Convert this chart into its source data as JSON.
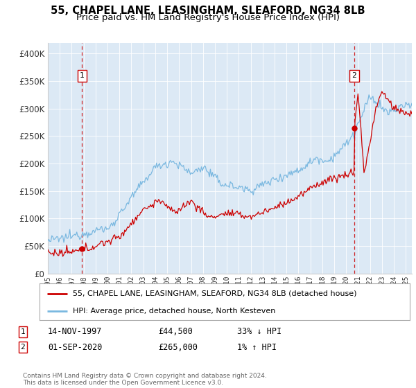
{
  "title": "55, CHAPEL LANE, LEASINGHAM, SLEAFORD, NG34 8LB",
  "subtitle": "Price paid vs. HM Land Registry's House Price Index (HPI)",
  "ylim": [
    0,
    420000
  ],
  "yticks": [
    0,
    50000,
    100000,
    150000,
    200000,
    250000,
    300000,
    350000,
    400000
  ],
  "ytick_labels": [
    "£0",
    "£50K",
    "£100K",
    "£150K",
    "£200K",
    "£250K",
    "£300K",
    "£350K",
    "£400K"
  ],
  "background_color": "#dce9f5",
  "hpi_color": "#7ab8e0",
  "price_color": "#cc0000",
  "sale1_x": 1997.87,
  "sale1_price": 44500,
  "sale2_x": 2020.67,
  "sale2_price": 265000,
  "legend_label1": "55, CHAPEL LANE, LEASINGHAM, SLEAFORD, NG34 8LB (detached house)",
  "legend_label2": "HPI: Average price, detached house, North Kesteven",
  "note1_date": "14-NOV-1997",
  "note1_price": "£44,500",
  "note1_pct": "33% ↓ HPI",
  "note2_date": "01-SEP-2020",
  "note2_price": "£265,000",
  "note2_pct": "1% ↑ HPI",
  "footer": "Contains HM Land Registry data © Crown copyright and database right 2024.\nThis data is licensed under the Open Government Licence v3.0."
}
